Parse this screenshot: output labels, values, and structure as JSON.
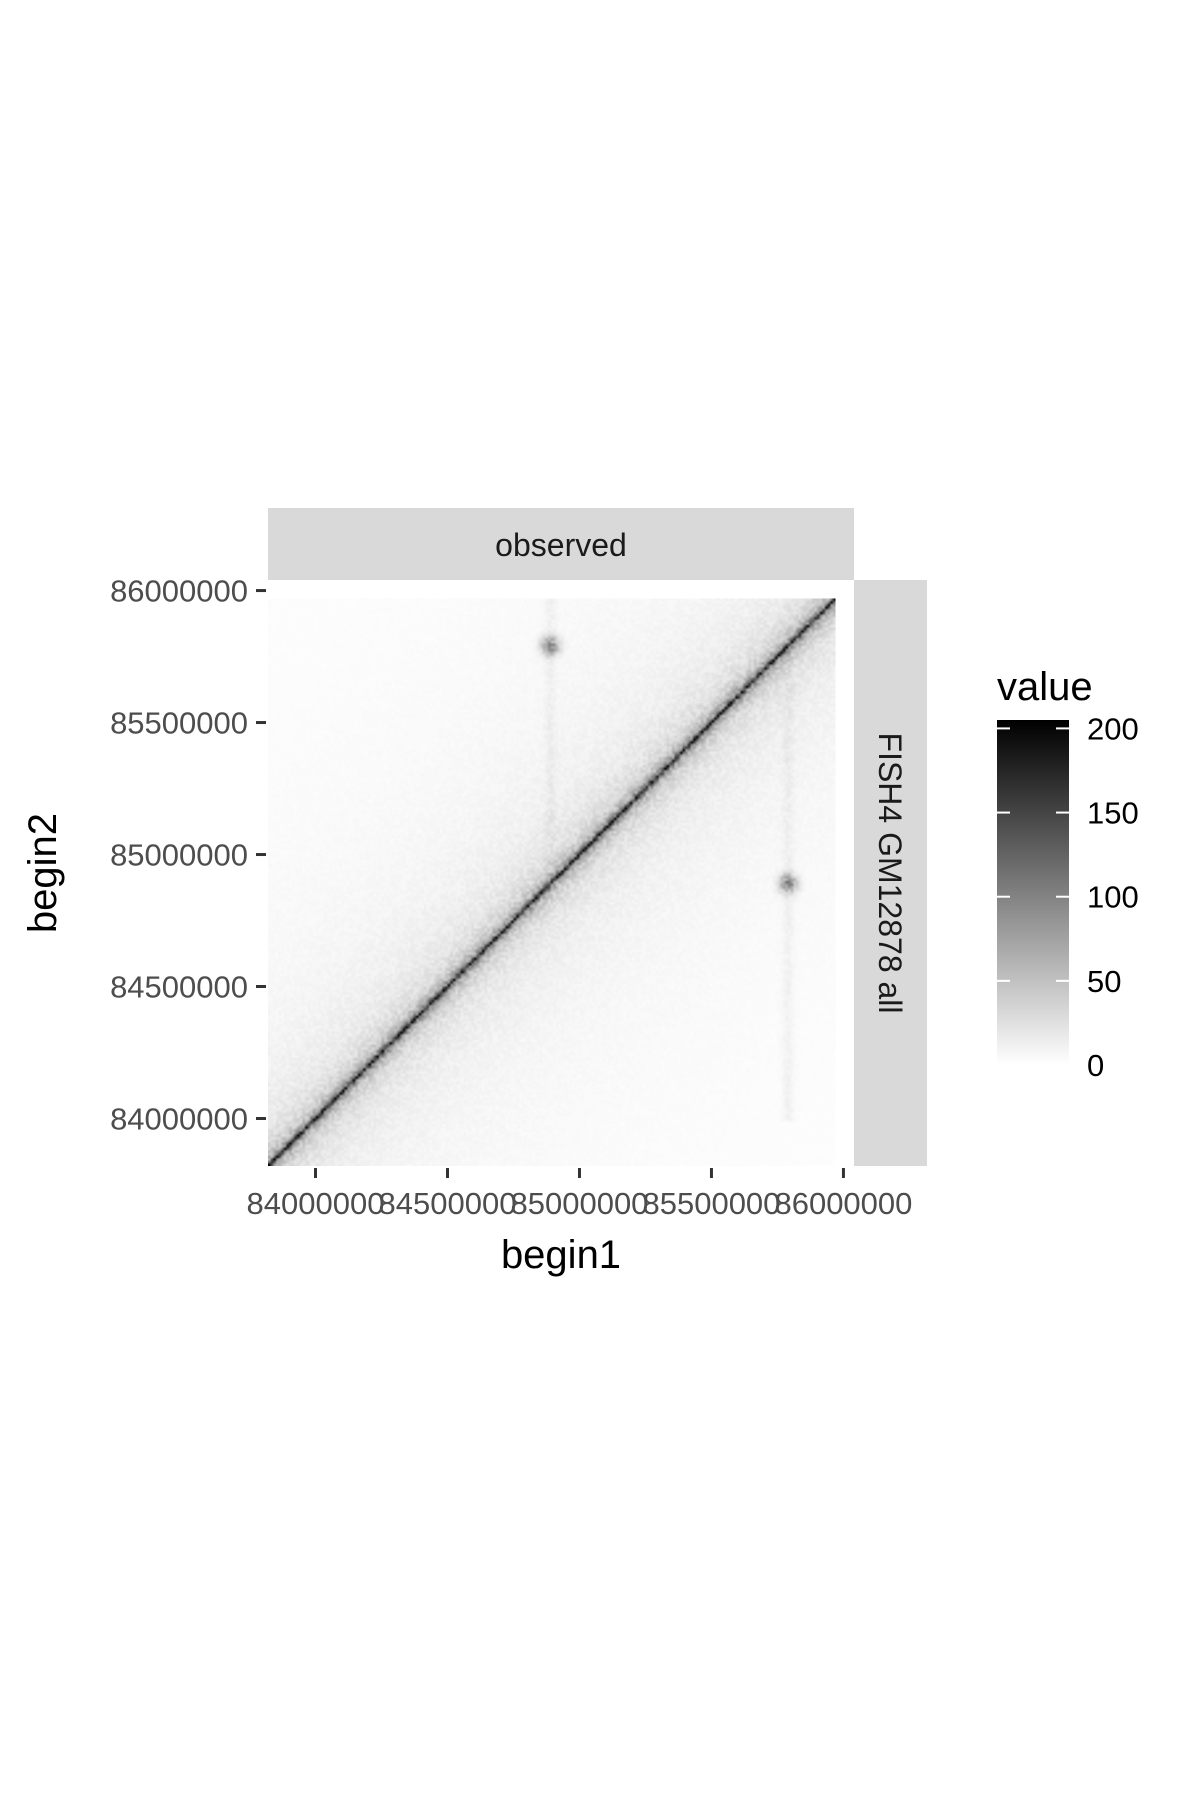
{
  "chart_data": {
    "type": "heatmap",
    "facet_top": "observed",
    "facet_right": "FISH4 GM12878 all",
    "xlabel": "begin1",
    "ylabel": "begin2",
    "x_ticks": [
      {
        "value": 84000000,
        "label": "84000000"
      },
      {
        "value": 84500000,
        "label": "84500000"
      },
      {
        "value": 85000000,
        "label": "85000000"
      },
      {
        "value": 85500000,
        "label": "85500000"
      },
      {
        "value": 86000000,
        "label": "86000000"
      }
    ],
    "y_ticks": [
      {
        "value": 84000000,
        "label": "84000000"
      },
      {
        "value": 84500000,
        "label": "84500000"
      },
      {
        "value": 85000000,
        "label": "85000000"
      },
      {
        "value": 85500000,
        "label": "85500000"
      },
      {
        "value": 86000000,
        "label": "86000000"
      }
    ],
    "xlim": [
      83820000,
      86040000
    ],
    "ylim": [
      83820000,
      86040000
    ],
    "data_range": [
      83820000,
      85970000
    ],
    "bin_size": 10000,
    "diagonal_peak": 205,
    "features": [
      {
        "kind": "diagonal",
        "value": 205
      },
      {
        "kind": "loop",
        "begin1": 84890000,
        "begin2": 85790000,
        "value": 70
      },
      {
        "kind": "loop",
        "begin1": 85790000,
        "begin2": 84890000,
        "value": 70
      }
    ],
    "legend": {
      "title": "value",
      "ticks": [
        {
          "value": 0,
          "label": "0"
        },
        {
          "value": 50,
          "label": "50"
        },
        {
          "value": 100,
          "label": "100"
        },
        {
          "value": 150,
          "label": "150"
        },
        {
          "value": 200,
          "label": "200"
        }
      ],
      "range": [
        0,
        205
      ],
      "low_color": "#ffffff",
      "high_color": "#000000"
    },
    "grid": false,
    "legend_position": "right",
    "colors": {
      "strip_fill": "#d9d9d9",
      "tick_color": "#333333",
      "tick_label_color": "#4d4d4d"
    }
  }
}
